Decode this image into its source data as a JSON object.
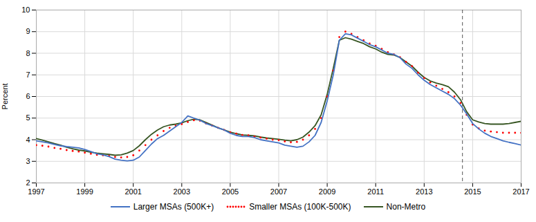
{
  "chart_data": {
    "type": "line",
    "ylabel": "Percent",
    "xlim": [
      1997,
      2017
    ],
    "ylim": [
      2,
      10
    ],
    "xticks": [
      1997,
      1999,
      2001,
      2003,
      2005,
      2007,
      2009,
      2011,
      2013,
      2015,
      2017
    ],
    "yticks": [
      2,
      3,
      4,
      5,
      6,
      7,
      8,
      9,
      10
    ],
    "grid": true,
    "legend": "bottom",
    "vline": {
      "x": 2014.58,
      "color": "#555555",
      "line_style": "dashed"
    },
    "x": [
      1997.0,
      1997.25,
      1997.5,
      1997.75,
      1998.0,
      1998.25,
      1998.5,
      1998.75,
      1999.0,
      1999.25,
      1999.5,
      1999.75,
      2000.0,
      2000.25,
      2000.5,
      2000.75,
      2001.0,
      2001.25,
      2001.5,
      2001.75,
      2002.0,
      2002.25,
      2002.5,
      2002.75,
      2003.0,
      2003.25,
      2003.5,
      2003.75,
      2004.0,
      2004.25,
      2004.5,
      2004.75,
      2005.0,
      2005.25,
      2005.5,
      2005.75,
      2006.0,
      2006.25,
      2006.5,
      2006.75,
      2007.0,
      2007.25,
      2007.5,
      2007.75,
      2008.0,
      2008.25,
      2008.5,
      2008.75,
      2009.0,
      2009.25,
      2009.5,
      2009.75,
      2010.0,
      2010.25,
      2010.5,
      2010.75,
      2011.0,
      2011.25,
      2011.5,
      2011.75,
      2012.0,
      2012.25,
      2012.5,
      2012.75,
      2013.0,
      2013.25,
      2013.5,
      2013.75,
      2014.0,
      2014.25,
      2014.5,
      2014.75,
      2015.0,
      2015.25,
      2015.5,
      2015.75,
      2016.0,
      2016.25,
      2016.5,
      2016.75,
      2017.0
    ],
    "series": [
      {
        "name": "Larger MSAs (500K+)",
        "color": "#4472C4",
        "line_style": "solid",
        "values": [
          3.95,
          3.9,
          3.85,
          3.78,
          3.72,
          3.68,
          3.65,
          3.62,
          3.55,
          3.45,
          3.35,
          3.3,
          3.22,
          3.1,
          3.05,
          3.02,
          3.05,
          3.2,
          3.5,
          3.8,
          4.05,
          4.2,
          4.4,
          4.6,
          4.8,
          5.1,
          5.0,
          4.9,
          4.75,
          4.65,
          4.55,
          4.45,
          4.3,
          4.2,
          4.15,
          4.15,
          4.1,
          4.0,
          3.95,
          3.9,
          3.85,
          3.75,
          3.7,
          3.65,
          3.7,
          3.9,
          4.2,
          4.8,
          5.8,
          7.0,
          8.6,
          8.9,
          8.85,
          8.7,
          8.55,
          8.4,
          8.3,
          8.15,
          8.0,
          7.95,
          7.8,
          7.5,
          7.3,
          7.0,
          6.75,
          6.55,
          6.4,
          6.25,
          6.1,
          5.9,
          5.6,
          5.2,
          4.75,
          4.5,
          4.3,
          4.15,
          4.05,
          3.95,
          3.88,
          3.82,
          3.75
        ]
      },
      {
        "name": "Smaller MSAs (100K-500K)",
        "color": "#FF0000",
        "line_style": "none",
        "marker": "circle",
        "values": [
          3.75,
          3.72,
          3.68,
          3.62,
          3.58,
          3.52,
          3.48,
          3.45,
          3.4,
          3.35,
          3.3,
          3.28,
          3.25,
          3.2,
          3.18,
          3.2,
          3.28,
          3.5,
          3.75,
          4.0,
          4.2,
          4.4,
          4.55,
          4.65,
          4.72,
          4.82,
          4.9,
          4.88,
          4.75,
          4.65,
          4.55,
          4.45,
          4.35,
          4.28,
          4.22,
          4.2,
          4.15,
          4.1,
          4.05,
          4.0,
          3.98,
          3.92,
          3.88,
          3.9,
          4.0,
          4.2,
          4.5,
          5.0,
          6.0,
          7.2,
          8.75,
          9.0,
          8.9,
          8.75,
          8.6,
          8.45,
          8.35,
          8.2,
          8.05,
          7.95,
          7.82,
          7.6,
          7.4,
          7.1,
          6.85,
          6.65,
          6.5,
          6.35,
          6.2,
          6.0,
          5.7,
          5.15,
          4.7,
          4.52,
          4.42,
          4.38,
          4.35,
          4.32,
          4.32,
          4.32,
          4.32
        ]
      },
      {
        "name": "Non-Metro",
        "color": "#375623",
        "line_style": "solid",
        "values": [
          4.05,
          3.98,
          3.9,
          3.82,
          3.75,
          3.65,
          3.58,
          3.52,
          3.48,
          3.42,
          3.38,
          3.35,
          3.32,
          3.28,
          3.3,
          3.38,
          3.5,
          3.72,
          4.0,
          4.25,
          4.45,
          4.6,
          4.68,
          4.72,
          4.78,
          4.88,
          4.95,
          4.92,
          4.8,
          4.68,
          4.55,
          4.45,
          4.35,
          4.28,
          4.22,
          4.2,
          4.18,
          4.12,
          4.08,
          4.05,
          4.02,
          3.98,
          3.95,
          4.0,
          4.12,
          4.35,
          4.65,
          5.15,
          6.1,
          7.3,
          8.6,
          8.72,
          8.65,
          8.55,
          8.45,
          8.3,
          8.2,
          8.05,
          7.95,
          7.92,
          7.8,
          7.6,
          7.4,
          7.12,
          6.88,
          6.72,
          6.62,
          6.55,
          6.45,
          6.2,
          5.85,
          5.3,
          4.92,
          4.82,
          4.75,
          4.72,
          4.72,
          4.72,
          4.75,
          4.8,
          4.85
        ]
      }
    ]
  }
}
